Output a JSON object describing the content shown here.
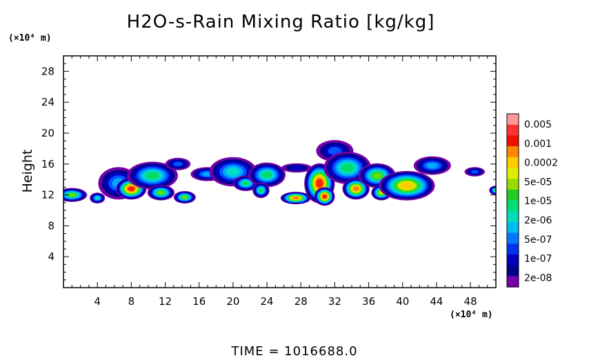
{
  "chart_data": {
    "type": "heatmap",
    "title": "H2O-s-Rain Mixing Ratio [kg/kg]",
    "ylabel": "Height",
    "x_unit_label": "(×10⁴ m)",
    "y_unit_label": "(×10⁴ m)",
    "footer": "TIME = 1016688.0",
    "xlim": [
      0,
      51
    ],
    "ylim": [
      0,
      30
    ],
    "x_ticks": [
      "4",
      "8",
      "12",
      "16",
      "20",
      "24",
      "28",
      "32",
      "36",
      "40",
      "44",
      "48"
    ],
    "y_ticks": [
      "4",
      "8",
      "12",
      "16",
      "20",
      "24",
      "28"
    ],
    "colorbar": {
      "labels": [
        "0.005",
        "0.001",
        "0.0002",
        "5e-05",
        "1e-05",
        "2e-06",
        "5e-07",
        "1e-07",
        "2e-08"
      ],
      "colors": [
        "#ff9999",
        "#ff3333",
        "#ee1100",
        "#ff8800",
        "#ffcc00",
        "#ddee00",
        "#99dd00",
        "#22cc22",
        "#00dd77",
        "#00ddbb",
        "#00bbee",
        "#0077ff",
        "#0033ee",
        "#0000bb",
        "#000088",
        "#7700aa"
      ]
    },
    "level_colors": [
      "#7700aa",
      "#000088",
      "#0000cc",
      "#0055ff",
      "#00aaff",
      "#00ddcc",
      "#00dd66",
      "#66dd00",
      "#ccee00",
      "#ffcc00",
      "#ff8800",
      "#ff2200"
    ],
    "features": [
      {
        "x": 1.0,
        "y": 12.0,
        "w": 1.8,
        "h": 0.9,
        "peak": 7
      },
      {
        "x": 4.0,
        "y": 11.6,
        "w": 0.9,
        "h": 0.7,
        "peak": 5
      },
      {
        "x": 6.5,
        "y": 13.5,
        "w": 2.4,
        "h": 2.1,
        "peak": 4
      },
      {
        "x": 8.0,
        "y": 12.8,
        "w": 1.8,
        "h": 1.4,
        "peak": 11
      },
      {
        "x": 10.5,
        "y": 14.5,
        "w": 3.0,
        "h": 1.8,
        "peak": 6
      },
      {
        "x": 11.5,
        "y": 12.3,
        "w": 1.6,
        "h": 1.0,
        "peak": 7
      },
      {
        "x": 14.3,
        "y": 11.7,
        "w": 1.3,
        "h": 0.8,
        "peak": 7
      },
      {
        "x": 13.5,
        "y": 16.0,
        "w": 1.5,
        "h": 0.8,
        "peak": 3
      },
      {
        "x": 17.0,
        "y": 14.7,
        "w": 2.0,
        "h": 0.9,
        "peak": 4
      },
      {
        "x": 20.0,
        "y": 15.0,
        "w": 2.8,
        "h": 1.9,
        "peak": 5
      },
      {
        "x": 21.5,
        "y": 13.5,
        "w": 1.5,
        "h": 1.0,
        "peak": 6
      },
      {
        "x": 24.0,
        "y": 14.6,
        "w": 2.2,
        "h": 1.6,
        "peak": 6
      },
      {
        "x": 23.3,
        "y": 12.6,
        "w": 1.0,
        "h": 1.0,
        "peak": 6
      },
      {
        "x": 27.5,
        "y": 15.5,
        "w": 1.8,
        "h": 0.6,
        "peak": 2
      },
      {
        "x": 27.4,
        "y": 11.6,
        "w": 1.8,
        "h": 0.8,
        "peak": 10
      },
      {
        "x": 30.2,
        "y": 13.5,
        "w": 1.8,
        "h": 2.6,
        "peak": 11
      },
      {
        "x": 30.8,
        "y": 11.8,
        "w": 1.2,
        "h": 1.2,
        "peak": 11
      },
      {
        "x": 32.0,
        "y": 17.7,
        "w": 2.2,
        "h": 1.4,
        "peak": 3
      },
      {
        "x": 33.5,
        "y": 15.5,
        "w": 2.8,
        "h": 2.1,
        "peak": 6
      },
      {
        "x": 34.5,
        "y": 12.8,
        "w": 1.6,
        "h": 1.4,
        "peak": 10
      },
      {
        "x": 37.0,
        "y": 14.5,
        "w": 2.2,
        "h": 1.6,
        "peak": 7
      },
      {
        "x": 37.5,
        "y": 12.3,
        "w": 1.2,
        "h": 1.0,
        "peak": 8
      },
      {
        "x": 40.5,
        "y": 13.2,
        "w": 3.3,
        "h": 1.9,
        "peak": 9
      },
      {
        "x": 43.5,
        "y": 15.8,
        "w": 2.2,
        "h": 1.2,
        "peak": 4
      },
      {
        "x": 48.5,
        "y": 15.0,
        "w": 1.2,
        "h": 0.6,
        "peak": 3
      },
      {
        "x": 51.0,
        "y": 12.6,
        "w": 0.8,
        "h": 0.6,
        "peak": 6
      }
    ]
  }
}
